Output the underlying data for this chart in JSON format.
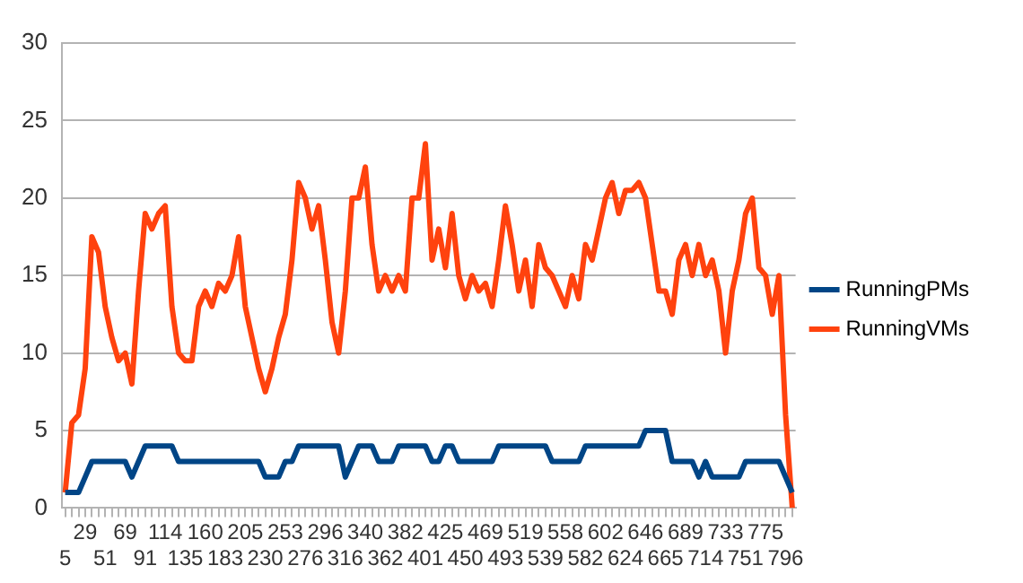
{
  "chart_data": {
    "type": "line",
    "categories": [
      "5",
      null,
      null,
      "29",
      null,
      null,
      "51",
      null,
      null,
      "69",
      null,
      null,
      "91",
      null,
      null,
      "114",
      null,
      null,
      "135",
      null,
      null,
      "160",
      null,
      null,
      "183",
      null,
      null,
      "205",
      null,
      null,
      "230",
      null,
      null,
      "253",
      null,
      null,
      "276",
      null,
      null,
      "296",
      null,
      null,
      "316",
      null,
      null,
      "340",
      null,
      null,
      "362",
      null,
      null,
      "382",
      null,
      null,
      "401",
      null,
      null,
      "425",
      null,
      null,
      "450",
      null,
      null,
      "469",
      null,
      null,
      "493",
      null,
      null,
      "519",
      null,
      null,
      "539",
      null,
      null,
      "558",
      null,
      null,
      "582",
      null,
      null,
      "602",
      null,
      null,
      "624",
      null,
      null,
      "646",
      null,
      null,
      "665",
      null,
      null,
      "689",
      null,
      null,
      "714",
      null,
      null,
      "733",
      null,
      null,
      "751",
      null,
      null,
      "775",
      null,
      null,
      "796",
      null
    ],
    "series": [
      {
        "name": "RunningPMs",
        "color": "#004586",
        "values": [
          1,
          1,
          1,
          2,
          3,
          3,
          3,
          3,
          3,
          3,
          2,
          3,
          4,
          4,
          4,
          4,
          4,
          3,
          3,
          3,
          3,
          3,
          3,
          3,
          3,
          3,
          3,
          3,
          3,
          3,
          2,
          2,
          2,
          3,
          3,
          4,
          4,
          4,
          4,
          4,
          4,
          4,
          2,
          3,
          4,
          4,
          4,
          3,
          3,
          3,
          4,
          4,
          4,
          4,
          4,
          3,
          3,
          4,
          4,
          3,
          3,
          3,
          3,
          3,
          3,
          4,
          4,
          4,
          4,
          4,
          4,
          4,
          4,
          3,
          3,
          3,
          3,
          3,
          4,
          4,
          4,
          4,
          4,
          4,
          4,
          4,
          4,
          5,
          5,
          5,
          5,
          3,
          3,
          3,
          3,
          2,
          3,
          2,
          2,
          2,
          2,
          2,
          3,
          3,
          3,
          3,
          3,
          3,
          2,
          1
        ]
      },
      {
        "name": "RunningVMs",
        "color": "#ff420e",
        "values": [
          1,
          5.5,
          6,
          9,
          17.5,
          16.5,
          13,
          11,
          9.5,
          10,
          8,
          14,
          19,
          18,
          19,
          19.5,
          13,
          10,
          9.5,
          9.5,
          13,
          14,
          13,
          14.5,
          14,
          15,
          17.5,
          13,
          11,
          9,
          7.5,
          9,
          11,
          12.5,
          16,
          21,
          20,
          18,
          19.5,
          16,
          12,
          10,
          14,
          20,
          20,
          22,
          17,
          14,
          15,
          14,
          15,
          14,
          20,
          20,
          23.5,
          16,
          18,
          15.5,
          19,
          15,
          13.5,
          15,
          14,
          14.5,
          13,
          16,
          19.5,
          17,
          14,
          16,
          13,
          17,
          15.5,
          15,
          14,
          13,
          15,
          13.5,
          17,
          16,
          18,
          20,
          21,
          19,
          20.5,
          20.5,
          21,
          20,
          17,
          14,
          14,
          12.5,
          16,
          17,
          15,
          17,
          15,
          16,
          14,
          10,
          14,
          16,
          19,
          20,
          15.5,
          15,
          12.5,
          15,
          6,
          0
        ]
      }
    ],
    "ylim": [
      0,
      30
    ],
    "yticks": [
      0,
      5,
      10,
      15,
      20,
      25,
      30
    ],
    "grid": "y",
    "legend": "right",
    "marker": "none",
    "line_style": "solid"
  }
}
